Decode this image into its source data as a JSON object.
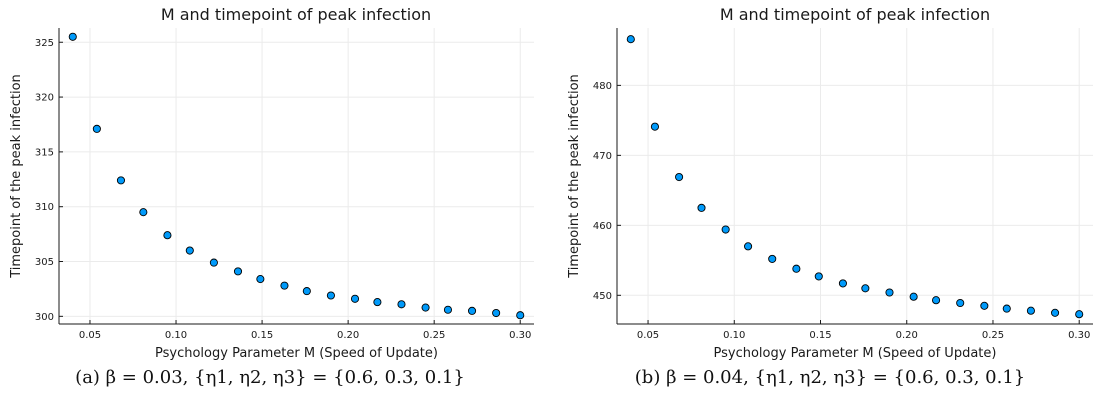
{
  "chart_data": [
    {
      "type": "scatter",
      "title": "M and timepoint of peak infection",
      "xlabel": "Psychology Parameter M (Speed of Update)",
      "ylabel": "Timepoint of the peak infection",
      "xlim": [
        0.032,
        0.308
      ],
      "ylim": [
        299.3,
        326.3
      ],
      "xticks": [
        0.05,
        0.1,
        0.15,
        0.2,
        0.25,
        0.3
      ],
      "xtick_labels": [
        "0.05",
        "0.10",
        "0.15",
        "0.20",
        "0.25",
        "0.30"
      ],
      "yticks": [
        300,
        305,
        310,
        315,
        320,
        325
      ],
      "ytick_labels": [
        "300",
        "305",
        "310",
        "315",
        "320",
        "325"
      ],
      "grid": true,
      "legend": "none",
      "marker_color": "#009AFA",
      "x": [
        0.04,
        0.054,
        0.068,
        0.081,
        0.095,
        0.108,
        0.122,
        0.136,
        0.149,
        0.163,
        0.176,
        0.19,
        0.204,
        0.217,
        0.231,
        0.245,
        0.258,
        0.272,
        0.286,
        0.3
      ],
      "y": [
        325.5,
        317.1,
        312.4,
        309.5,
        307.4,
        306.0,
        304.9,
        304.1,
        303.4,
        302.8,
        302.3,
        301.9,
        301.6,
        301.3,
        301.1,
        300.8,
        300.6,
        300.5,
        300.3,
        300.1
      ],
      "caption": "(a) β = 0.03, {η1, η2, η3} = {0.6, 0.3, 0.1}"
    },
    {
      "type": "scatter",
      "title": "M and timepoint of peak infection",
      "xlabel": "Psychology Parameter M (Speed of Update)",
      "ylabel": "Timepoint of the peak infection",
      "xlim": [
        0.032,
        0.308
      ],
      "ylim": [
        445.9,
        488.2
      ],
      "xticks": [
        0.05,
        0.1,
        0.15,
        0.2,
        0.25,
        0.3
      ],
      "xtick_labels": [
        "0.05",
        "0.10",
        "0.15",
        "0.20",
        "0.25",
        "0.30"
      ],
      "yticks": [
        450,
        460,
        470,
        480
      ],
      "ytick_labels": [
        "450",
        "460",
        "470",
        "480"
      ],
      "grid": true,
      "legend": "none",
      "marker_color": "#009AFA",
      "x": [
        0.04,
        0.054,
        0.068,
        0.081,
        0.095,
        0.108,
        0.122,
        0.136,
        0.149,
        0.163,
        0.176,
        0.19,
        0.204,
        0.217,
        0.231,
        0.245,
        0.258,
        0.272,
        0.286,
        0.3
      ],
      "y": [
        486.6,
        474.1,
        466.9,
        462.5,
        459.4,
        457.0,
        455.2,
        453.8,
        452.7,
        451.7,
        451.0,
        450.4,
        449.8,
        449.3,
        448.9,
        448.5,
        448.1,
        447.8,
        447.5,
        447.3
      ],
      "caption": "(b) β = 0.04, {η1, η2, η3} = {0.6, 0.3, 0.1}"
    }
  ]
}
